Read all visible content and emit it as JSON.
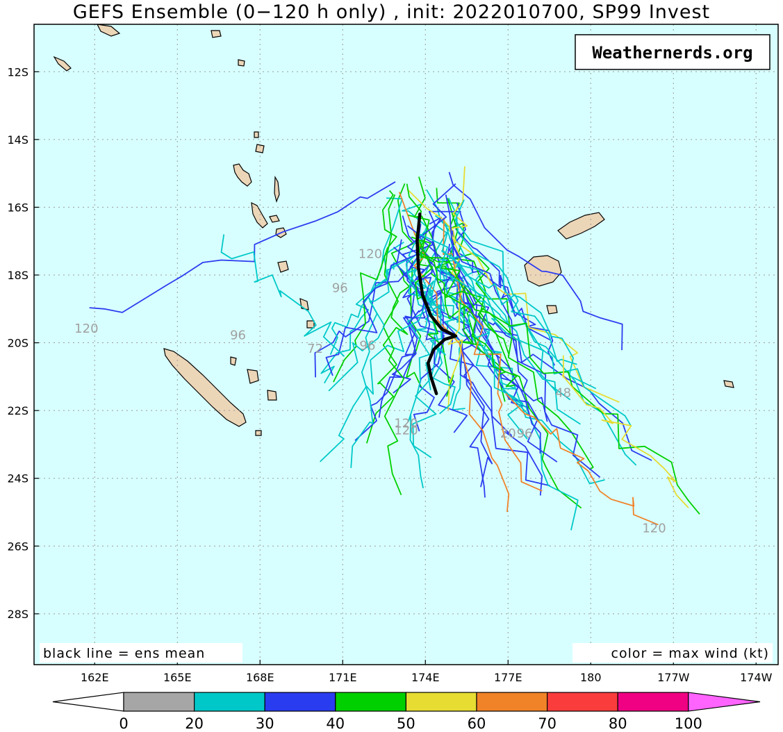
{
  "title": "GEFS Ensemble (0−120 h only) , init: 2022010700, SP99 Invest",
  "brand": "Weathernerds.org",
  "legend_left": "black line = ens mean",
  "legend_right": "color = max wind (kt)",
  "map": {
    "lon_range_deg_east": [
      159.8,
      186.8
    ],
    "lat_range_deg_north": [
      -29.5,
      -10.6
    ],
    "lon_ticks": [
      162,
      165,
      168,
      171,
      174,
      177,
      180,
      183,
      186
    ],
    "lon_tick_labels": [
      "162E",
      "165E",
      "168E",
      "171E",
      "174E",
      "177E",
      "180",
      "177W",
      "174W"
    ],
    "lat_ticks": [
      -12,
      -14,
      -16,
      -18,
      -20,
      -22,
      -24,
      -26,
      -28
    ],
    "lat_tick_labels": [
      "12S",
      "14S",
      "16S",
      "18S",
      "20S",
      "22S",
      "24S",
      "26S",
      "28S"
    ],
    "gridlines": true,
    "ocean_color": "#d8ffff",
    "land_color": "#ecd6b8"
  },
  "colorbar": {
    "bins": [
      {
        "from": 0,
        "to": 20,
        "color": "#a6a6a6"
      },
      {
        "from": 20,
        "to": 30,
        "color": "#00c8c8"
      },
      {
        "from": 30,
        "to": 40,
        "color": "#2a3cf0"
      },
      {
        "from": 40,
        "to": 50,
        "color": "#00d000"
      },
      {
        "from": 50,
        "to": 60,
        "color": "#e6dc32"
      },
      {
        "from": 60,
        "to": 70,
        "color": "#f08228"
      },
      {
        "from": 70,
        "to": 80,
        "color": "#fa3c3c"
      },
      {
        "from": 80,
        "to": 100,
        "color": "#f00082"
      }
    ],
    "under_color": "#ffffff",
    "over_color": "#ff64ff",
    "labels": [
      "0",
      "20",
      "30",
      "40",
      "50",
      "60",
      "70",
      "80",
      "100"
    ]
  },
  "ensemble_mean": {
    "color": "#000000",
    "track": [
      [
        173.8,
        -16.2
      ],
      [
        173.7,
        -17.0
      ],
      [
        173.75,
        -17.8
      ],
      [
        173.9,
        -18.6
      ],
      [
        174.2,
        -19.2
      ],
      [
        174.6,
        -19.6
      ],
      [
        175.1,
        -19.8
      ],
      [
        174.7,
        -19.9
      ],
      [
        174.3,
        -20.2
      ],
      [
        174.1,
        -20.6
      ],
      [
        174.2,
        -21.0
      ],
      [
        174.4,
        -21.5
      ]
    ]
  },
  "track_labels": [
    {
      "text": "120",
      "lon": 161.7,
      "lat": -19.7
    },
    {
      "text": "96",
      "lon": 167.2,
      "lat": -19.9
    },
    {
      "text": "96",
      "lon": 170.9,
      "lat": -18.5
    },
    {
      "text": "120",
      "lon": 172.0,
      "lat": -17.5
    },
    {
      "text": "72",
      "lon": 170.0,
      "lat": -20.3
    },
    {
      "text": "96",
      "lon": 171.9,
      "lat": -20.2
    },
    {
      "text": "120",
      "lon": 173.3,
      "lat": -22.5
    },
    {
      "text": "120",
      "lon": 173.3,
      "lat": -22.7
    },
    {
      "text": "20",
      "lon": 177.0,
      "lat": -22.8
    },
    {
      "text": "96",
      "lon": 177.6,
      "lat": -22.8
    },
    {
      "text": "120",
      "lon": 182.3,
      "lat": -25.6
    },
    {
      "text": "48",
      "lon": 179.0,
      "lat": -21.6
    }
  ]
}
